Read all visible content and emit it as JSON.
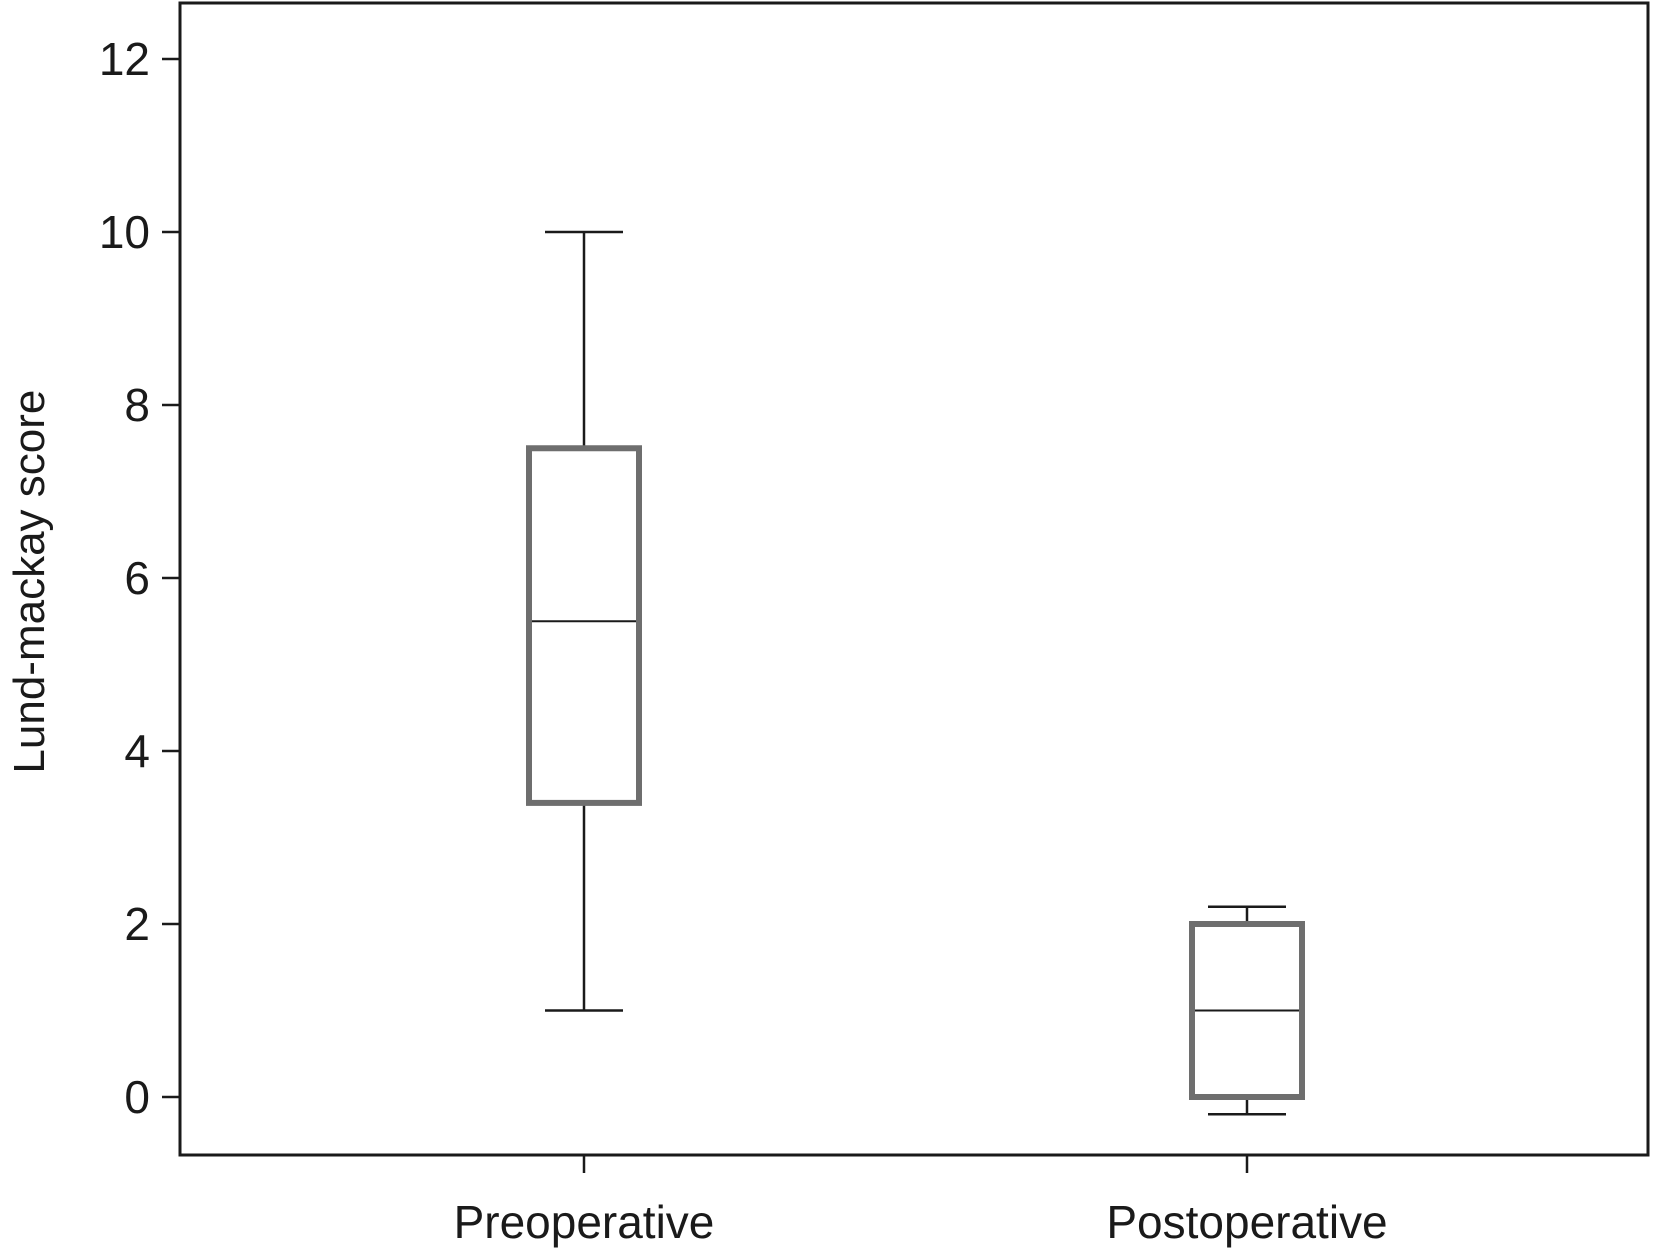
{
  "chart_data": {
    "type": "box",
    "ylabel": "Lund-mackay score",
    "xlabel": "",
    "ylim": [
      -1.3,
      12.8
    ],
    "yticks": [
      0,
      2,
      4,
      6,
      8,
      10,
      12
    ],
    "ytick_labels": [
      "0",
      "2",
      "4",
      "6",
      "8",
      "10",
      "12"
    ],
    "categories": [
      "Preoperative",
      "Postoperative"
    ],
    "boxes": [
      {
        "category": "Preoperative",
        "whisker_low": 1.0,
        "q1": 3.4,
        "median": 5.5,
        "q3": 7.5,
        "whisker_high": 10.0
      },
      {
        "category": "Postoperative",
        "whisker_low": -0.2,
        "q1": 0.0,
        "median": 1.0,
        "q3": 2.0,
        "whisker_high": 2.2
      }
    ],
    "grid": false,
    "colors": {
      "box_edge": "#6e6e6e",
      "lines": "#1a1a1a",
      "frame": "#1a1a1a"
    }
  }
}
